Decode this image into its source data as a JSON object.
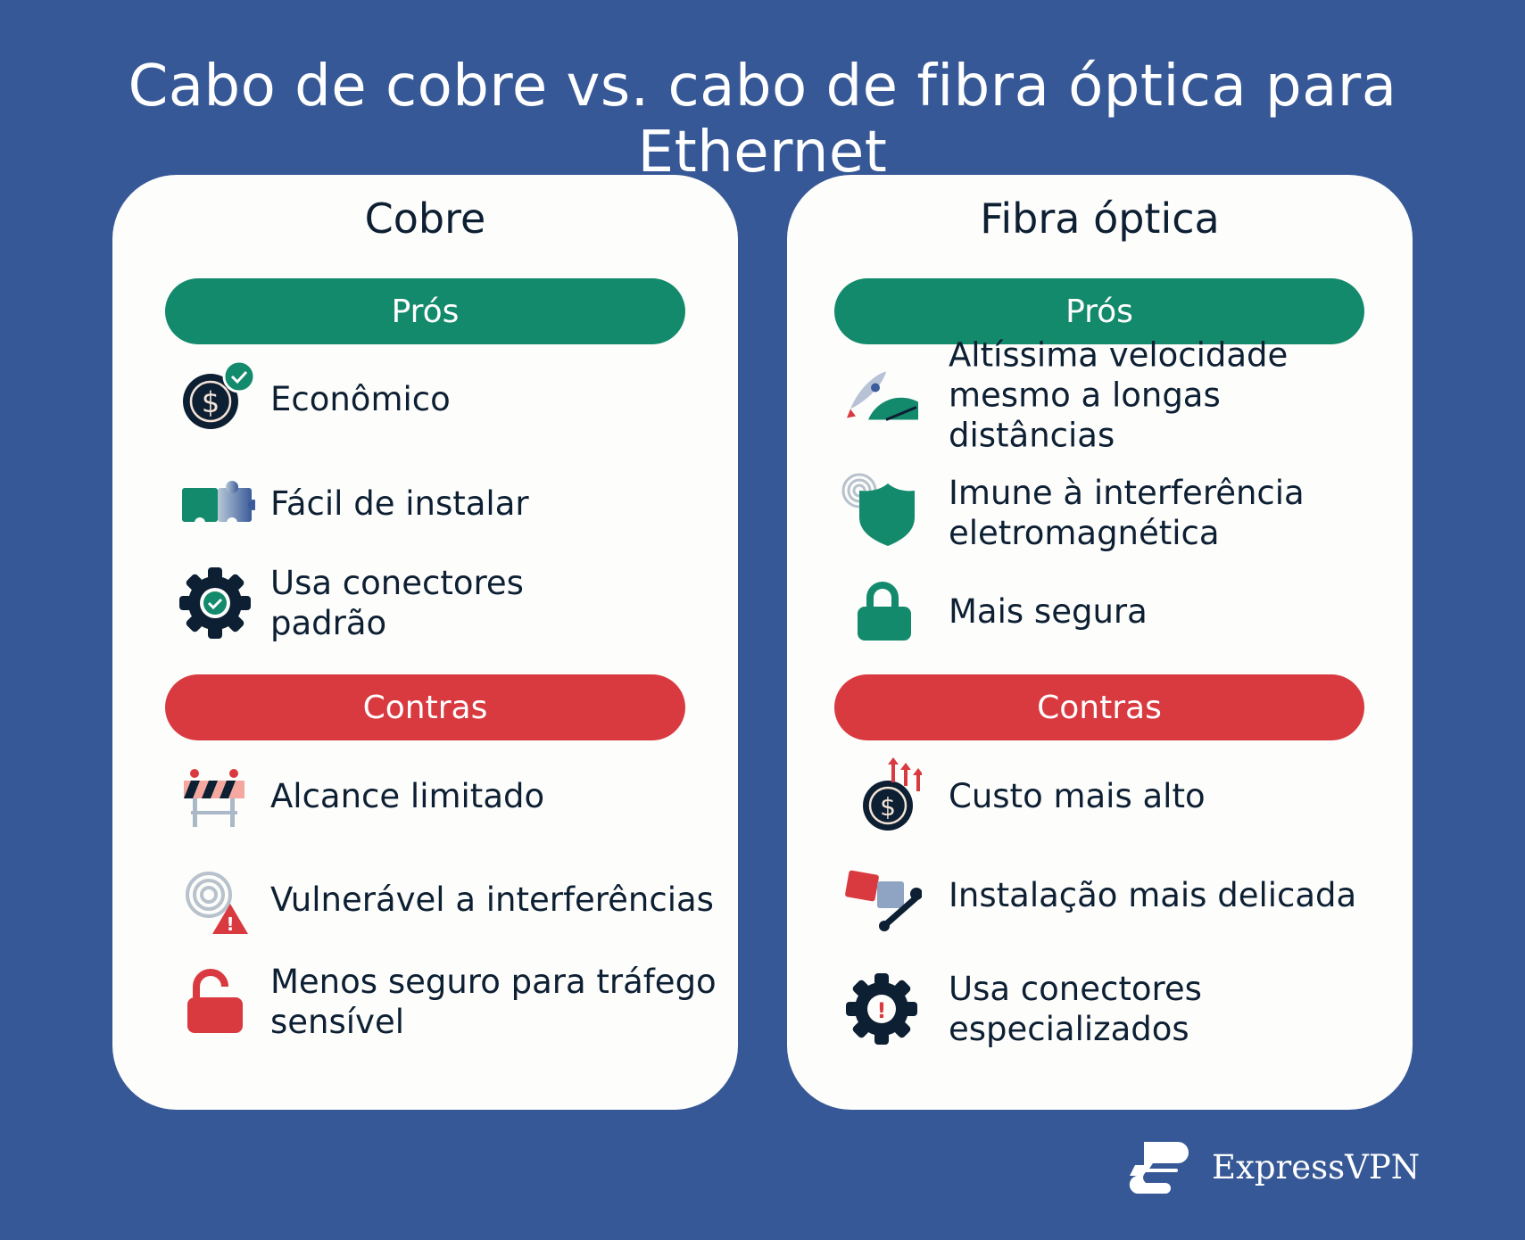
{
  "title": "Cabo de cobre vs. cabo de fibra óptica para Ethernet",
  "colors": {
    "background": "#365896",
    "pros": "#138a6c",
    "cons": "#d93a40",
    "text": "#0d1f33"
  },
  "copper": {
    "heading": "Cobre",
    "pros_label": "Prós",
    "cons_label": "Contras",
    "pros": [
      {
        "text": "Econômico",
        "icon": "dollar-check-icon"
      },
      {
        "text": "Fácil de instalar",
        "icon": "puzzle-icon"
      },
      {
        "text": "Usa conectores padrão",
        "icon": "gear-check-icon"
      }
    ],
    "cons": [
      {
        "text": "Alcance limitado",
        "icon": "barrier-icon"
      },
      {
        "text": "Vulnerável a interferências",
        "icon": "signal-warning-icon"
      },
      {
        "text": "Menos seguro para tráfego sensível",
        "icon": "unlocked-padlock-icon"
      }
    ]
  },
  "fiber": {
    "heading": "Fibra óptica",
    "pros_label": "Prós",
    "cons_label": "Contras",
    "pros": [
      {
        "text": "Altíssima velocidade mesmo a longas distâncias",
        "icon": "rocket-speedometer-icon"
      },
      {
        "text": "Imune à interferência eletromagnética",
        "icon": "shield-signal-icon"
      },
      {
        "text": "Mais segura",
        "icon": "padlock-icon"
      }
    ],
    "cons": [
      {
        "text": "Custo mais alto",
        "icon": "dollar-rising-icon"
      },
      {
        "text": "Instalação mais delicada",
        "icon": "puzzle-wrench-icon"
      },
      {
        "text": "Usa conectores especializados",
        "icon": "gear-warning-icon"
      }
    ]
  },
  "brand": "ExpressVPN"
}
